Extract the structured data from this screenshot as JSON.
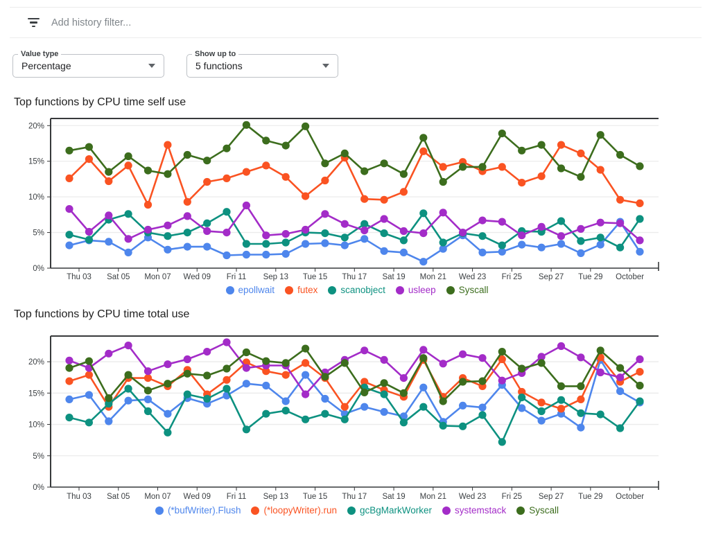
{
  "filter_bar": {
    "placeholder": "Add history filter..."
  },
  "controls": [
    {
      "label": "Value type",
      "value": "Percentage"
    },
    {
      "label": "Show up to",
      "value": "5 functions"
    }
  ],
  "chart_data": [
    {
      "type": "line",
      "title": "Top functions by CPU time self use",
      "xlabel": "",
      "ylabel": "",
      "x_tick_labels": [
        "Thu 03",
        "Sat 05",
        "Mon 07",
        "Wed 09",
        "Fri 11",
        "Sep 13",
        "Tue 15",
        "Thu 17",
        "Sat 19",
        "Mon 21",
        "Wed 23",
        "Fri 25",
        "Sep 27",
        "Tue 29",
        "October"
      ],
      "label_start_index": 0,
      "label_every": 2,
      "y_ticks": [
        0,
        5,
        10,
        15,
        20
      ],
      "y_tick_labels": [
        "0%",
        "5%",
        "10%",
        "15%",
        "20%"
      ],
      "ylim": [
        0,
        21.0
      ],
      "grid": true,
      "legend_position": "bottom",
      "series": [
        {
          "name": "epollwait",
          "color": "#4e86ec",
          "values": [
            3.2,
            3.9,
            3.7,
            2.2,
            4.3,
            2.6,
            3.0,
            3.0,
            1.8,
            1.9,
            1.9,
            2.0,
            3.4,
            3.5,
            3.2,
            4.1,
            2.4,
            2.2,
            0.9,
            2.7,
            4.6,
            2.2,
            2.3,
            3.3,
            2.9,
            3.4,
            2.1,
            3.3,
            6.5,
            2.3
          ]
        },
        {
          "name": "futex",
          "color": "#fa5322",
          "values": [
            12.6,
            15.3,
            12.2,
            14.4,
            8.9,
            17.3,
            9.3,
            12.1,
            12.6,
            13.5,
            14.4,
            12.8,
            10.1,
            12.3,
            15.5,
            9.7,
            9.6,
            10.7,
            16.4,
            14.2,
            14.9,
            13.6,
            14.2,
            12.0,
            12.9,
            17.3,
            16.1,
            13.8,
            9.6,
            9.1
          ]
        },
        {
          "name": "scanobject",
          "color": "#0d9180",
          "values": [
            4.7,
            4.0,
            6.8,
            7.6,
            5.0,
            4.5,
            5.0,
            6.3,
            7.9,
            3.4,
            3.4,
            3.6,
            5.0,
            4.9,
            4.3,
            6.2,
            4.9,
            3.9,
            7.7,
            3.6,
            4.9,
            4.5,
            3.2,
            5.2,
            5.1,
            6.6,
            3.8,
            4.3,
            2.9,
            6.9
          ]
        },
        {
          "name": "usleep",
          "color": "#a32cc8",
          "values": [
            8.3,
            5.1,
            7.4,
            4.1,
            5.4,
            6.0,
            7.3,
            5.2,
            5.0,
            8.8,
            4.6,
            4.8,
            5.4,
            7.6,
            6.2,
            5.3,
            6.9,
            5.2,
            4.9,
            7.8,
            5.0,
            6.7,
            6.5,
            4.6,
            5.8,
            4.5,
            5.5,
            6.4,
            6.3,
            3.9
          ]
        },
        {
          "name": "Syscall",
          "color": "#3c6d1d",
          "values": [
            16.5,
            17.0,
            13.5,
            15.7,
            13.7,
            13.2,
            15.9,
            15.1,
            16.8,
            20.1,
            17.9,
            17.2,
            19.9,
            14.7,
            16.1,
            13.6,
            14.7,
            13.2,
            18.3,
            12.1,
            14.2,
            14.2,
            18.9,
            16.5,
            17.3,
            14.0,
            12.8,
            18.7,
            15.9,
            14.3
          ]
        }
      ]
    },
    {
      "type": "line",
      "title": "Top functions by CPU time total use",
      "xlabel": "",
      "ylabel": "",
      "x_tick_labels": [
        "Thu 03",
        "Sat 05",
        "Mon 07",
        "Wed 09",
        "Fri 11",
        "Sep 13",
        "Tue 15",
        "Thu 17",
        "Sat 19",
        "Mon 21",
        "Wed 23",
        "Fri 25",
        "Sep 27",
        "Tue 29",
        "October"
      ],
      "label_start_index": 0,
      "label_every": 2,
      "y_ticks": [
        0,
        5,
        10,
        15,
        20
      ],
      "y_tick_labels": [
        "0%",
        "5%",
        "10%",
        "15%",
        "20%"
      ],
      "ylim": [
        0,
        24.1
      ],
      "grid": true,
      "legend_position": "bottom",
      "series": [
        {
          "name": "(*bufWriter).Flush",
          "color": "#4e86ec",
          "values": [
            14.0,
            14.7,
            10.5,
            13.8,
            14.0,
            11.7,
            14.2,
            13.3,
            14.6,
            16.5,
            16.2,
            13.7,
            17.9,
            14.1,
            11.7,
            12.8,
            12.0,
            11.3,
            15.9,
            10.4,
            13.0,
            12.7,
            16.3,
            12.6,
            10.6,
            11.7,
            9.5,
            20.3,
            15.3,
            13.5
          ]
        },
        {
          "name": "(*loopyWriter).run",
          "color": "#fa5322",
          "values": [
            16.9,
            17.9,
            12.8,
            17.4,
            17.4,
            16.1,
            18.7,
            14.8,
            17.1,
            19.9,
            18.5,
            17.9,
            19.8,
            17.4,
            12.8,
            16.8,
            15.5,
            14.4,
            20.3,
            14.4,
            17.4,
            16.1,
            20.4,
            15.2,
            13.5,
            12.5,
            14.0,
            20.7,
            16.8,
            18.4
          ]
        },
        {
          "name": "gcBgMarkWorker",
          "color": "#0d9180",
          "values": [
            11.1,
            10.3,
            13.3,
            15.7,
            12.1,
            8.7,
            14.8,
            14.1,
            15.7,
            9.2,
            11.7,
            12.2,
            10.8,
            11.7,
            10.8,
            15.9,
            14.8,
            10.3,
            12.8,
            9.8,
            9.7,
            11.5,
            7.2,
            14.3,
            12.1,
            13.9,
            11.8,
            11.6,
            9.4,
            13.7
          ]
        },
        {
          "name": "systemstack",
          "color": "#a32cc8",
          "values": [
            20.2,
            19.0,
            21.3,
            22.6,
            18.5,
            19.6,
            20.4,
            21.6,
            23.1,
            19.0,
            19.4,
            19.4,
            14.8,
            18.3,
            20.3,
            21.8,
            20.3,
            17.4,
            21.9,
            19.7,
            21.2,
            20.6,
            17.0,
            18.2,
            20.8,
            22.5,
            20.7,
            18.3,
            17.5,
            20.4
          ]
        },
        {
          "name": "Syscall",
          "color": "#3c6d1d",
          "values": [
            19.0,
            20.1,
            14.2,
            17.9,
            15.4,
            16.5,
            18.1,
            17.8,
            18.9,
            21.5,
            20.1,
            19.8,
            22.1,
            17.6,
            19.8,
            15.1,
            16.6,
            15.0,
            20.6,
            13.7,
            16.8,
            16.9,
            21.6,
            18.9,
            19.8,
            16.1,
            16.1,
            21.8,
            19.0,
            16.2
          ]
        }
      ]
    }
  ]
}
